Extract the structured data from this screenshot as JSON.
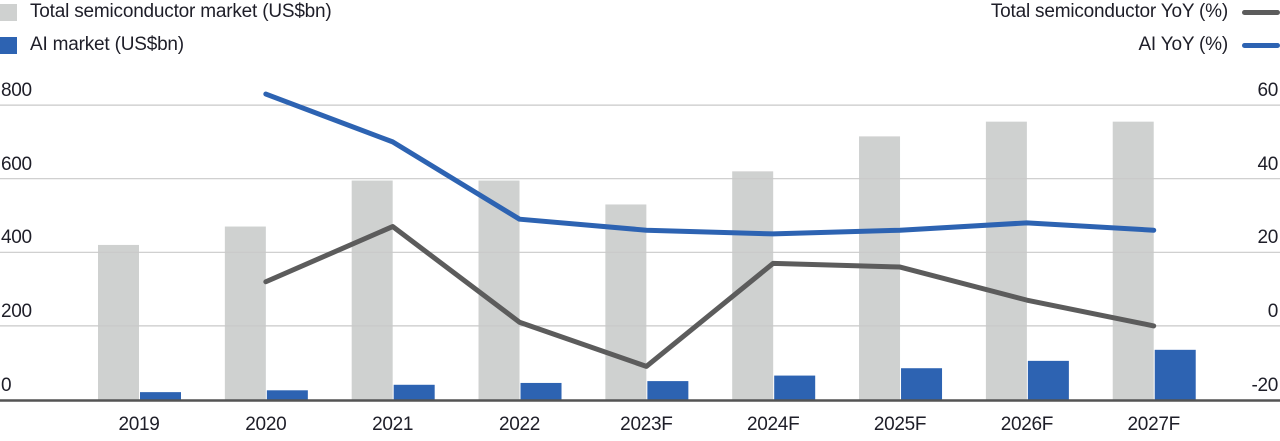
{
  "chart_data": {
    "type": "combo-bar-line",
    "title": "",
    "categories": [
      "2019",
      "2020",
      "2021",
      "2022",
      "2023F",
      "2024F",
      "2025F",
      "2026F",
      "2027F"
    ],
    "series": [
      {
        "name": "Total semiconductor market (US$bn)",
        "kind": "bar",
        "axis": "left",
        "color": "#cfd1d0",
        "values": [
          420,
          470,
          595,
          595,
          530,
          620,
          715,
          755,
          755
        ]
      },
      {
        "name": "AI market (US$bn)",
        "kind": "bar",
        "axis": "left",
        "color": "#2d63b2",
        "values": [
          20,
          25,
          40,
          45,
          50,
          65,
          85,
          105,
          135
        ]
      },
      {
        "name": "Total semiconductor YoY (%)",
        "kind": "line",
        "axis": "right",
        "color": "#5c5c5c",
        "values": [
          null,
          12,
          27,
          1,
          -11,
          17,
          16,
          7,
          0
        ]
      },
      {
        "name": "AI YoY (%)",
        "kind": "line",
        "axis": "right",
        "color": "#2d63b2",
        "values": [
          null,
          63,
          50,
          29,
          26,
          25,
          26,
          28,
          26
        ]
      }
    ],
    "left_axis": {
      "ticks": [
        0,
        200,
        400,
        600,
        800
      ],
      "range": [
        0,
        800
      ]
    },
    "right_axis": {
      "ticks": [
        -20,
        0,
        20,
        40,
        60
      ],
      "range": [
        -20,
        60
      ]
    },
    "grid": true,
    "legend_position": "top"
  },
  "colors": {
    "background": "#ffffff",
    "gridline": "#c9c9c9",
    "axis_baseline": "#545454",
    "text": "#1e1e28",
    "total_bar": "#cfd1d0",
    "ai_blue": "#2d63b2",
    "total_yoy_line": "#5c5c5c"
  }
}
